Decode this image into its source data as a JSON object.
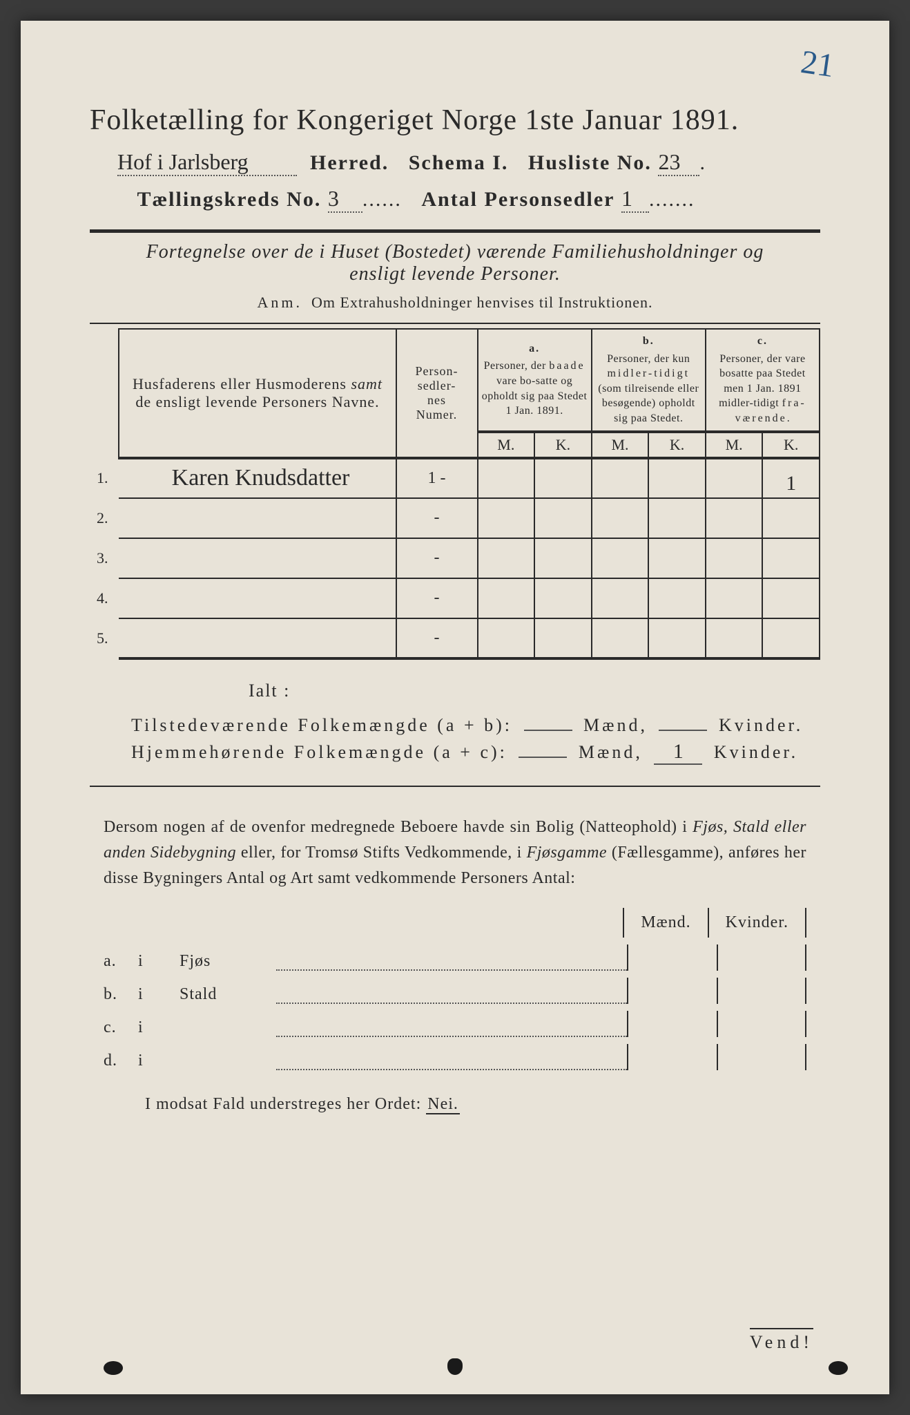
{
  "page_corner_number": "21",
  "title": "Folketælling for Kongeriget Norge 1ste Januar 1891.",
  "header": {
    "herred_handwritten": "Hof i Jarlsberg",
    "herred_label": "Herred.",
    "schema_label": "Schema I.",
    "husliste_label": "Husliste No.",
    "husliste_no": "23",
    "kreds_label": "Tællingskreds No.",
    "kreds_no": "3",
    "antal_label": "Antal Personsedler",
    "antal_value": "1"
  },
  "subtitle": "Fortegnelse over de i Huset (Bostedet) værende Familiehusholdninger og ensligt levende Personer.",
  "anm_prefix": "Anm.",
  "anm_text": "Om Extrahusholdninger henvises til Instruktionen.",
  "table_headers": {
    "name": "Husfaderens eller Husmoderens <span class=\"it\">samt</span> de ensligt levende Personers Navne.",
    "num": "Person-<br>sedler-<br>nes<br>Numer.",
    "a_label": "a.",
    "a_text": "Personer, der <span class=\"sp2\">baade</span> vare bo-satte og opholdt sig paa Stedet 1 Jan. 1891.",
    "b_label": "b.",
    "b_text": "Personer, der kun <span class=\"sp2\">midler-tidigt</span> (som tilreisende eller besøgende) opholdt sig paa Stedet.",
    "c_label": "c.",
    "c_text": "Personer, der vare bosatte paa Stedet men 1 Jan. 1891 midler-tidigt <span class=\"sp2\">fra-værende</span>.",
    "m": "M.",
    "k": "K."
  },
  "rows": [
    {
      "n": "1.",
      "name": "Karen Knudsdatter",
      "num": "1 -",
      "am": "",
      "ak": "",
      "bm": "",
      "bk": "",
      "cm": "",
      "ck": "1"
    },
    {
      "n": "2.",
      "name": "",
      "num": "-",
      "am": "",
      "ak": "",
      "bm": "",
      "bk": "",
      "cm": "",
      "ck": ""
    },
    {
      "n": "3.",
      "name": "",
      "num": "-",
      "am": "",
      "ak": "",
      "bm": "",
      "bk": "",
      "cm": "",
      "ck": ""
    },
    {
      "n": "4.",
      "name": "",
      "num": "-",
      "am": "",
      "ak": "",
      "bm": "",
      "bk": "",
      "cm": "",
      "ck": ""
    },
    {
      "n": "5.",
      "name": "",
      "num": "-",
      "am": "",
      "ak": "",
      "bm": "",
      "bk": "",
      "cm": "",
      "ck": ""
    }
  ],
  "ialt": "Ialt :",
  "sum": {
    "line1_label": "Tilstedeværende Folkemængde (a + b):",
    "line2_label": "Hjemmehørende Folkemængde (a + c):",
    "maend": "Mænd,",
    "kvinder": "Kvinder.",
    "l1_m": "",
    "l1_k": "",
    "l2_m": "",
    "l2_k": "1"
  },
  "para": "Dersom nogen af de ovenfor medregnede Beboere havde sin Bolig (Natteophold) i <em>Fjøs, Stald eller anden Sidebygning</em> eller, for Tromsø Stifts Vedkommende, i <em>Fjøsgamme</em> (Fællesgamme), anføres her disse Bygningers Antal og Art samt vedkommende Personers Antal:",
  "outb": {
    "maend": "Mænd.",
    "kvinder": "Kvinder.",
    "rows": [
      {
        "lbl": "a.",
        "i": "i",
        "kind": "Fjøs"
      },
      {
        "lbl": "b.",
        "i": "i",
        "kind": "Stald"
      },
      {
        "lbl": "c.",
        "i": "i",
        "kind": ""
      },
      {
        "lbl": "d.",
        "i": "i",
        "kind": ""
      }
    ]
  },
  "nei_line_pre": "I modsat Fald understreges her Ordet:",
  "nei_word": "Nei.",
  "vend": "Vend!",
  "colors": {
    "page_bg": "#e8e3d8",
    "ink": "#2a2a2a",
    "blue_pencil": "#2a5a8a"
  }
}
